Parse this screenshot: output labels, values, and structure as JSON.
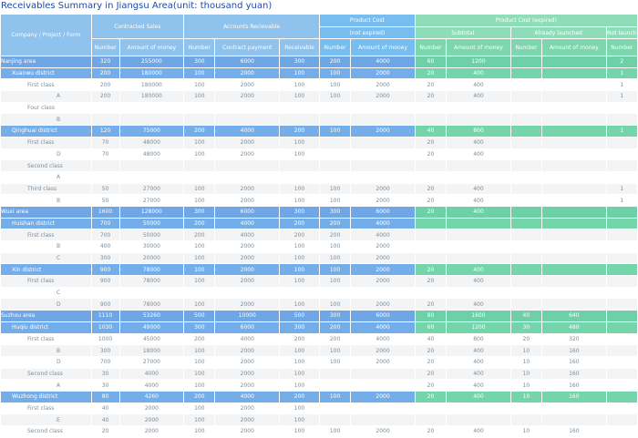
{
  "title": "Receivables Summary in Jiangsu Area(unit: thousand yuan)",
  "header": {
    "col0": "Company / Project / Form",
    "contracted_sales": "Contracted Sales",
    "accounts_receivable": "Accounts Recievable",
    "product_cost": "Product Cost",
    "not_expired": "(not expired)",
    "product_cost_expired": "Product Cost (expired)",
    "subtotal": "Subtotal",
    "already_launched": "Already launched",
    "not_launch": "Not launch",
    "number": "Number",
    "amount_of_money": "Amount of money",
    "contract_payment": "Contract payment",
    "receivable": "Receivable"
  },
  "rows": [
    {
      "type": "area",
      "name": "Nanjing area",
      "v": [
        "320",
        "255000",
        "300",
        "6000",
        "300",
        "200",
        "4000",
        "60",
        "1200",
        "",
        "",
        "2"
      ]
    },
    {
      "type": "district",
      "name": "Xuanwu district",
      "v": [
        "200",
        "180000",
        "100",
        "2000",
        "100",
        "100",
        "2000",
        "20",
        "400",
        "",
        "",
        "1"
      ]
    },
    {
      "type": "cls",
      "name": "First class",
      "v": [
        "200",
        "180000",
        "100",
        "2000",
        "100",
        "100",
        "2000",
        "20",
        "400",
        "",
        "",
        "1"
      ]
    },
    {
      "type": "leaf",
      "name": "A",
      "v": [
        "200",
        "180000",
        "100",
        "2000",
        "100",
        "100",
        "2000",
        "20",
        "400",
        "",
        "",
        "1"
      ]
    },
    {
      "type": "cls",
      "name": "Four class",
      "v": [
        "",
        "",
        "",
        "",
        "",
        "",
        "",
        "",
        "",
        "",
        "",
        ""
      ]
    },
    {
      "type": "leaf",
      "name": "B",
      "v": [
        "",
        "",
        "",
        "",
        "",
        "",
        "",
        "",
        "",
        "",
        "",
        ""
      ]
    },
    {
      "type": "district",
      "name": "Qinghuai district",
      "v": [
        "120",
        "75000",
        "200",
        "4000",
        "200",
        "100",
        "2000",
        "40",
        "800",
        "",
        "",
        "1"
      ]
    },
    {
      "type": "cls",
      "name": "First class",
      "v": [
        "70",
        "48000",
        "100",
        "2000",
        "100",
        "",
        "",
        "20",
        "400",
        "",
        "",
        ""
      ]
    },
    {
      "type": "leaf",
      "name": "D",
      "v": [
        "70",
        "48000",
        "100",
        "2000",
        "100",
        "",
        "",
        "20",
        "400",
        "",
        "",
        ""
      ]
    },
    {
      "type": "cls",
      "name": "Second class",
      "v": [
        "",
        "",
        "",
        "",
        "",
        "",
        "",
        "",
        "",
        "",
        "",
        ""
      ]
    },
    {
      "type": "leaf",
      "name": "A",
      "v": [
        "",
        "",
        "",
        "",
        "",
        "",
        "",
        "",
        "",
        "",
        "",
        ""
      ]
    },
    {
      "type": "cls",
      "name": "Third class",
      "v": [
        "50",
        "27000",
        "100",
        "2000",
        "100",
        "100",
        "2000",
        "20",
        "400",
        "",
        "",
        "1"
      ]
    },
    {
      "type": "leaf",
      "name": "B",
      "v": [
        "50",
        "27000",
        "100",
        "2000",
        "100",
        "100",
        "2000",
        "20",
        "400",
        "",
        "",
        "1"
      ]
    },
    {
      "type": "area",
      "name": "Wuxi area",
      "v": [
        "1600",
        "128000",
        "300",
        "6000",
        "300",
        "300",
        "6000",
        "20",
        "400",
        "",
        "",
        ""
      ]
    },
    {
      "type": "district",
      "name": "Huishan district",
      "v": [
        "700",
        "50000",
        "200",
        "4000",
        "200",
        "200",
        "4000",
        "",
        "",
        "",
        "",
        ""
      ]
    },
    {
      "type": "cls",
      "name": "First class",
      "v": [
        "700",
        "50000",
        "200",
        "4000",
        "200",
        "200",
        "4000",
        "",
        "",
        "",
        "",
        ""
      ]
    },
    {
      "type": "leaf",
      "name": "B",
      "v": [
        "400",
        "30000",
        "100",
        "2000",
        "100",
        "100",
        "2000",
        "",
        "",
        "",
        "",
        ""
      ]
    },
    {
      "type": "leaf",
      "name": "C",
      "v": [
        "300",
        "20000",
        "100",
        "2000",
        "100",
        "100",
        "2000",
        "",
        "",
        "",
        "",
        ""
      ]
    },
    {
      "type": "district",
      "name": "Xin district",
      "v": [
        "900",
        "78000",
        "100",
        "2000",
        "100",
        "100",
        "2000",
        "20",
        "400",
        "",
        "",
        ""
      ]
    },
    {
      "type": "cls",
      "name": "First class",
      "v": [
        "900",
        "78000",
        "100",
        "2000",
        "100",
        "100",
        "2000",
        "20",
        "400",
        "",
        "",
        ""
      ]
    },
    {
      "type": "leaf",
      "name": "C",
      "v": [
        "",
        "",
        "",
        "",
        "",
        "",
        "",
        "",
        "",
        "",
        "",
        ""
      ]
    },
    {
      "type": "leaf",
      "name": "D",
      "v": [
        "900",
        "78000",
        "100",
        "2000",
        "100",
        "100",
        "2000",
        "20",
        "400",
        "",
        "",
        ""
      ]
    },
    {
      "type": "area",
      "name": "Suzhou area",
      "v": [
        "1110",
        "53260",
        "500",
        "10000",
        "500",
        "300",
        "6000",
        "80",
        "1600",
        "40",
        "640",
        ""
      ]
    },
    {
      "type": "district",
      "name": "Huqiu district",
      "v": [
        "1030",
        "49000",
        "300",
        "6000",
        "300",
        "200",
        "4000",
        "60",
        "1200",
        "30",
        "480",
        ""
      ]
    },
    {
      "type": "cls",
      "name": "First class",
      "v": [
        "1000",
        "45000",
        "200",
        "4000",
        "200",
        "200",
        "4000",
        "40",
        "800",
        "20",
        "320",
        ""
      ]
    },
    {
      "type": "leaf",
      "name": "B",
      "v": [
        "300",
        "18000",
        "100",
        "2000",
        "100",
        "100",
        "2000",
        "20",
        "400",
        "10",
        "160",
        ""
      ]
    },
    {
      "type": "leaf",
      "name": "D",
      "v": [
        "700",
        "27000",
        "100",
        "2000",
        "100",
        "100",
        "2000",
        "20",
        "400",
        "10",
        "160",
        ""
      ]
    },
    {
      "type": "cls",
      "name": "Second class",
      "v": [
        "30",
        "4000",
        "100",
        "2000",
        "100",
        "",
        "",
        "20",
        "400",
        "10",
        "160",
        ""
      ]
    },
    {
      "type": "leaf",
      "name": "A",
      "v": [
        "30",
        "4000",
        "100",
        "2000",
        "100",
        "",
        "",
        "20",
        "400",
        "10",
        "160",
        ""
      ]
    },
    {
      "type": "district",
      "name": "Wuzhong district",
      "v": [
        "80",
        "4260",
        "200",
        "4000",
        "200",
        "100",
        "2000",
        "20",
        "400",
        "10",
        "160",
        ""
      ]
    },
    {
      "type": "cls",
      "name": "First class",
      "v": [
        "40",
        "2000",
        "100",
        "2000",
        "100",
        "",
        "",
        "",
        "",
        "",
        "",
        ""
      ]
    },
    {
      "type": "leaf",
      "name": "E",
      "v": [
        "40",
        "2000",
        "100",
        "2000",
        "100",
        "",
        "",
        "",
        "",
        "",
        "",
        ""
      ]
    },
    {
      "type": "cls",
      "name": "Second class",
      "v": [
        "20",
        "2000",
        "100",
        "2000",
        "100",
        "100",
        "2000",
        "20",
        "400",
        "10",
        "160",
        ""
      ]
    }
  ]
}
